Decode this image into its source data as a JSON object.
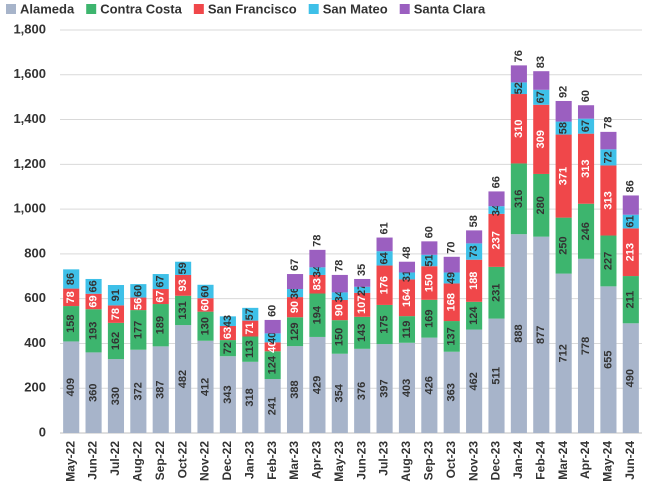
{
  "chart_data": {
    "type": "stacked_bar",
    "categories": [
      "May-22",
      "Jun-22",
      "Jul-22",
      "Aug-22",
      "Sep-22",
      "Oct-22",
      "Nov-22",
      "Dec-22",
      "Jan-23",
      "Feb-23",
      "Mar-23",
      "Apr-23",
      "May-23",
      "Jun-23",
      "Jul-23",
      "Aug-23",
      "Sep-23",
      "Oct-23",
      "Nov-23",
      "Dec-23",
      "Jan-24",
      "Feb-24",
      "Mar-24",
      "Apr-24",
      "May-24",
      "Jun-24"
    ],
    "series": [
      {
        "name": "Alameda",
        "color": "#a7b4ca",
        "values": [
          409,
          360,
          330,
          372,
          387,
          482,
          412,
          343,
          318,
          241,
          388,
          429,
          354,
          376,
          397,
          403,
          426,
          363,
          462,
          511,
          888,
          877,
          712,
          778,
          655,
          490
        ]
      },
      {
        "name": "Contra Costa",
        "color": "#3db56e",
        "values": [
          158,
          193,
          162,
          177,
          189,
          131,
          130,
          72,
          113,
          124,
          129,
          194,
          150,
          143,
          175,
          119,
          169,
          137,
          124,
          231,
          316,
          280,
          250,
          246,
          227,
          211
        ]
      },
      {
        "name": "San Francisco",
        "color": "#f0474a",
        "values": [
          78,
          69,
          78,
          56,
          67,
          93,
          60,
          63,
          71,
          40,
          90,
          83,
          90,
          107,
          176,
          164,
          150,
          168,
          188,
          237,
          310,
          309,
          371,
          313,
          313,
          213
        ]
      },
      {
        "name": "San Mateo",
        "color": "#3ec0e8",
        "values": [
          86,
          66,
          91,
          60,
          67,
          59,
          60,
          43,
          57,
          40,
          36,
          34,
          34,
          27,
          64,
          31,
          51,
          49,
          73,
          34,
          52,
          67,
          58,
          67,
          72,
          61
        ]
      },
      {
        "name": "Santa Clara",
        "color": "#9b5fc0",
        "values": [
          null,
          null,
          null,
          null,
          null,
          null,
          null,
          null,
          null,
          60,
          67,
          78,
          78,
          35,
          61,
          48,
          60,
          70,
          58,
          66,
          76,
          83,
          92,
          60,
          78,
          86
        ]
      }
    ],
    "ylim": [
      0,
      1800
    ],
    "yticks": [
      0,
      200,
      400,
      600,
      800,
      {
        "value": 1000,
        "label": "1,000"
      },
      {
        "value": 1200,
        "label": "1,200"
      },
      {
        "value": 1400,
        "label": "1,400"
      },
      {
        "value": 1600,
        "label": "1,600"
      },
      {
        "value": 1800,
        "label": "1,800"
      }
    ],
    "grid": true,
    "legend": "top"
  }
}
